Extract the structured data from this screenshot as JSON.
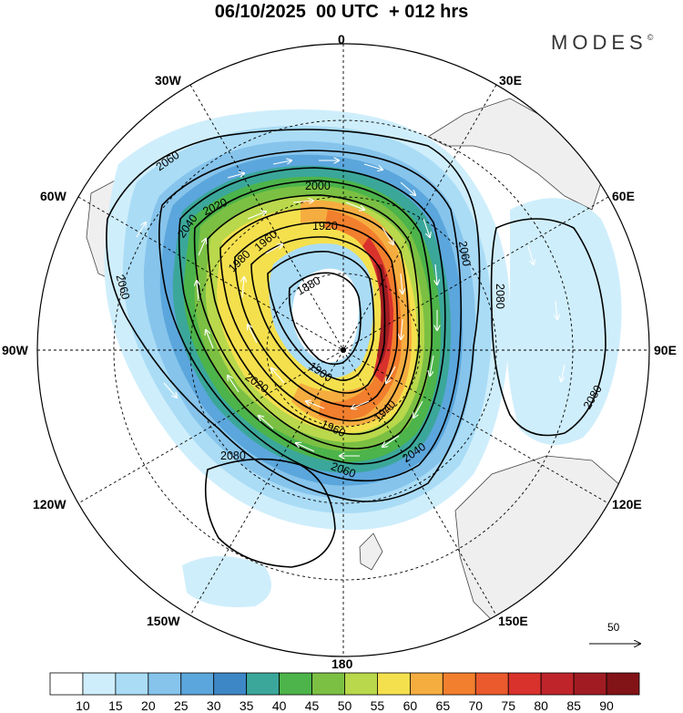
{
  "title": "06/10/2025  00 UTC  + 012 hrs",
  "brand": "MODES",
  "brand_mark": "©",
  "longitude_labels": [
    {
      "name": "lon-label-0",
      "text": "0"
    },
    {
      "name": "lon-label-30e",
      "text": "30E"
    },
    {
      "name": "lon-label-60e",
      "text": "60E"
    },
    {
      "name": "lon-label-90e",
      "text": "90E"
    },
    {
      "name": "lon-label-120e",
      "text": "120E"
    },
    {
      "name": "lon-label-150e",
      "text": "150E"
    },
    {
      "name": "lon-label-180",
      "text": "180"
    },
    {
      "name": "lon-label-150w",
      "text": "150W"
    },
    {
      "name": "lon-label-120w",
      "text": "120W"
    },
    {
      "name": "lon-label-90w",
      "text": "90W"
    },
    {
      "name": "lon-label-60w",
      "text": "60W"
    },
    {
      "name": "lon-label-30w",
      "text": "30W"
    }
  ],
  "contour_labels": [
    "2060",
    "2040",
    "2020",
    "2000",
    "1980",
    "1960",
    "1940",
    "1920",
    "1900",
    "1880",
    "2080"
  ],
  "colorbar": {
    "values": [
      "10",
      "15",
      "20",
      "25",
      "30",
      "35",
      "40",
      "45",
      "50",
      "55",
      "60",
      "65",
      "70",
      "75",
      "80",
      "85",
      "90"
    ],
    "colors": [
      "#ffffff",
      "#cfeefb",
      "#aadcf6",
      "#86c4ec",
      "#5ba6dc",
      "#3e87c6",
      "#3ba79a",
      "#4cb44a",
      "#7bc043",
      "#b9d84b",
      "#f4e04d",
      "#f6ad40",
      "#f27f2d",
      "#ea5a2d",
      "#d9312c",
      "#c0242b",
      "#a01c22",
      "#821317"
    ]
  },
  "reference_vector": "50"
}
